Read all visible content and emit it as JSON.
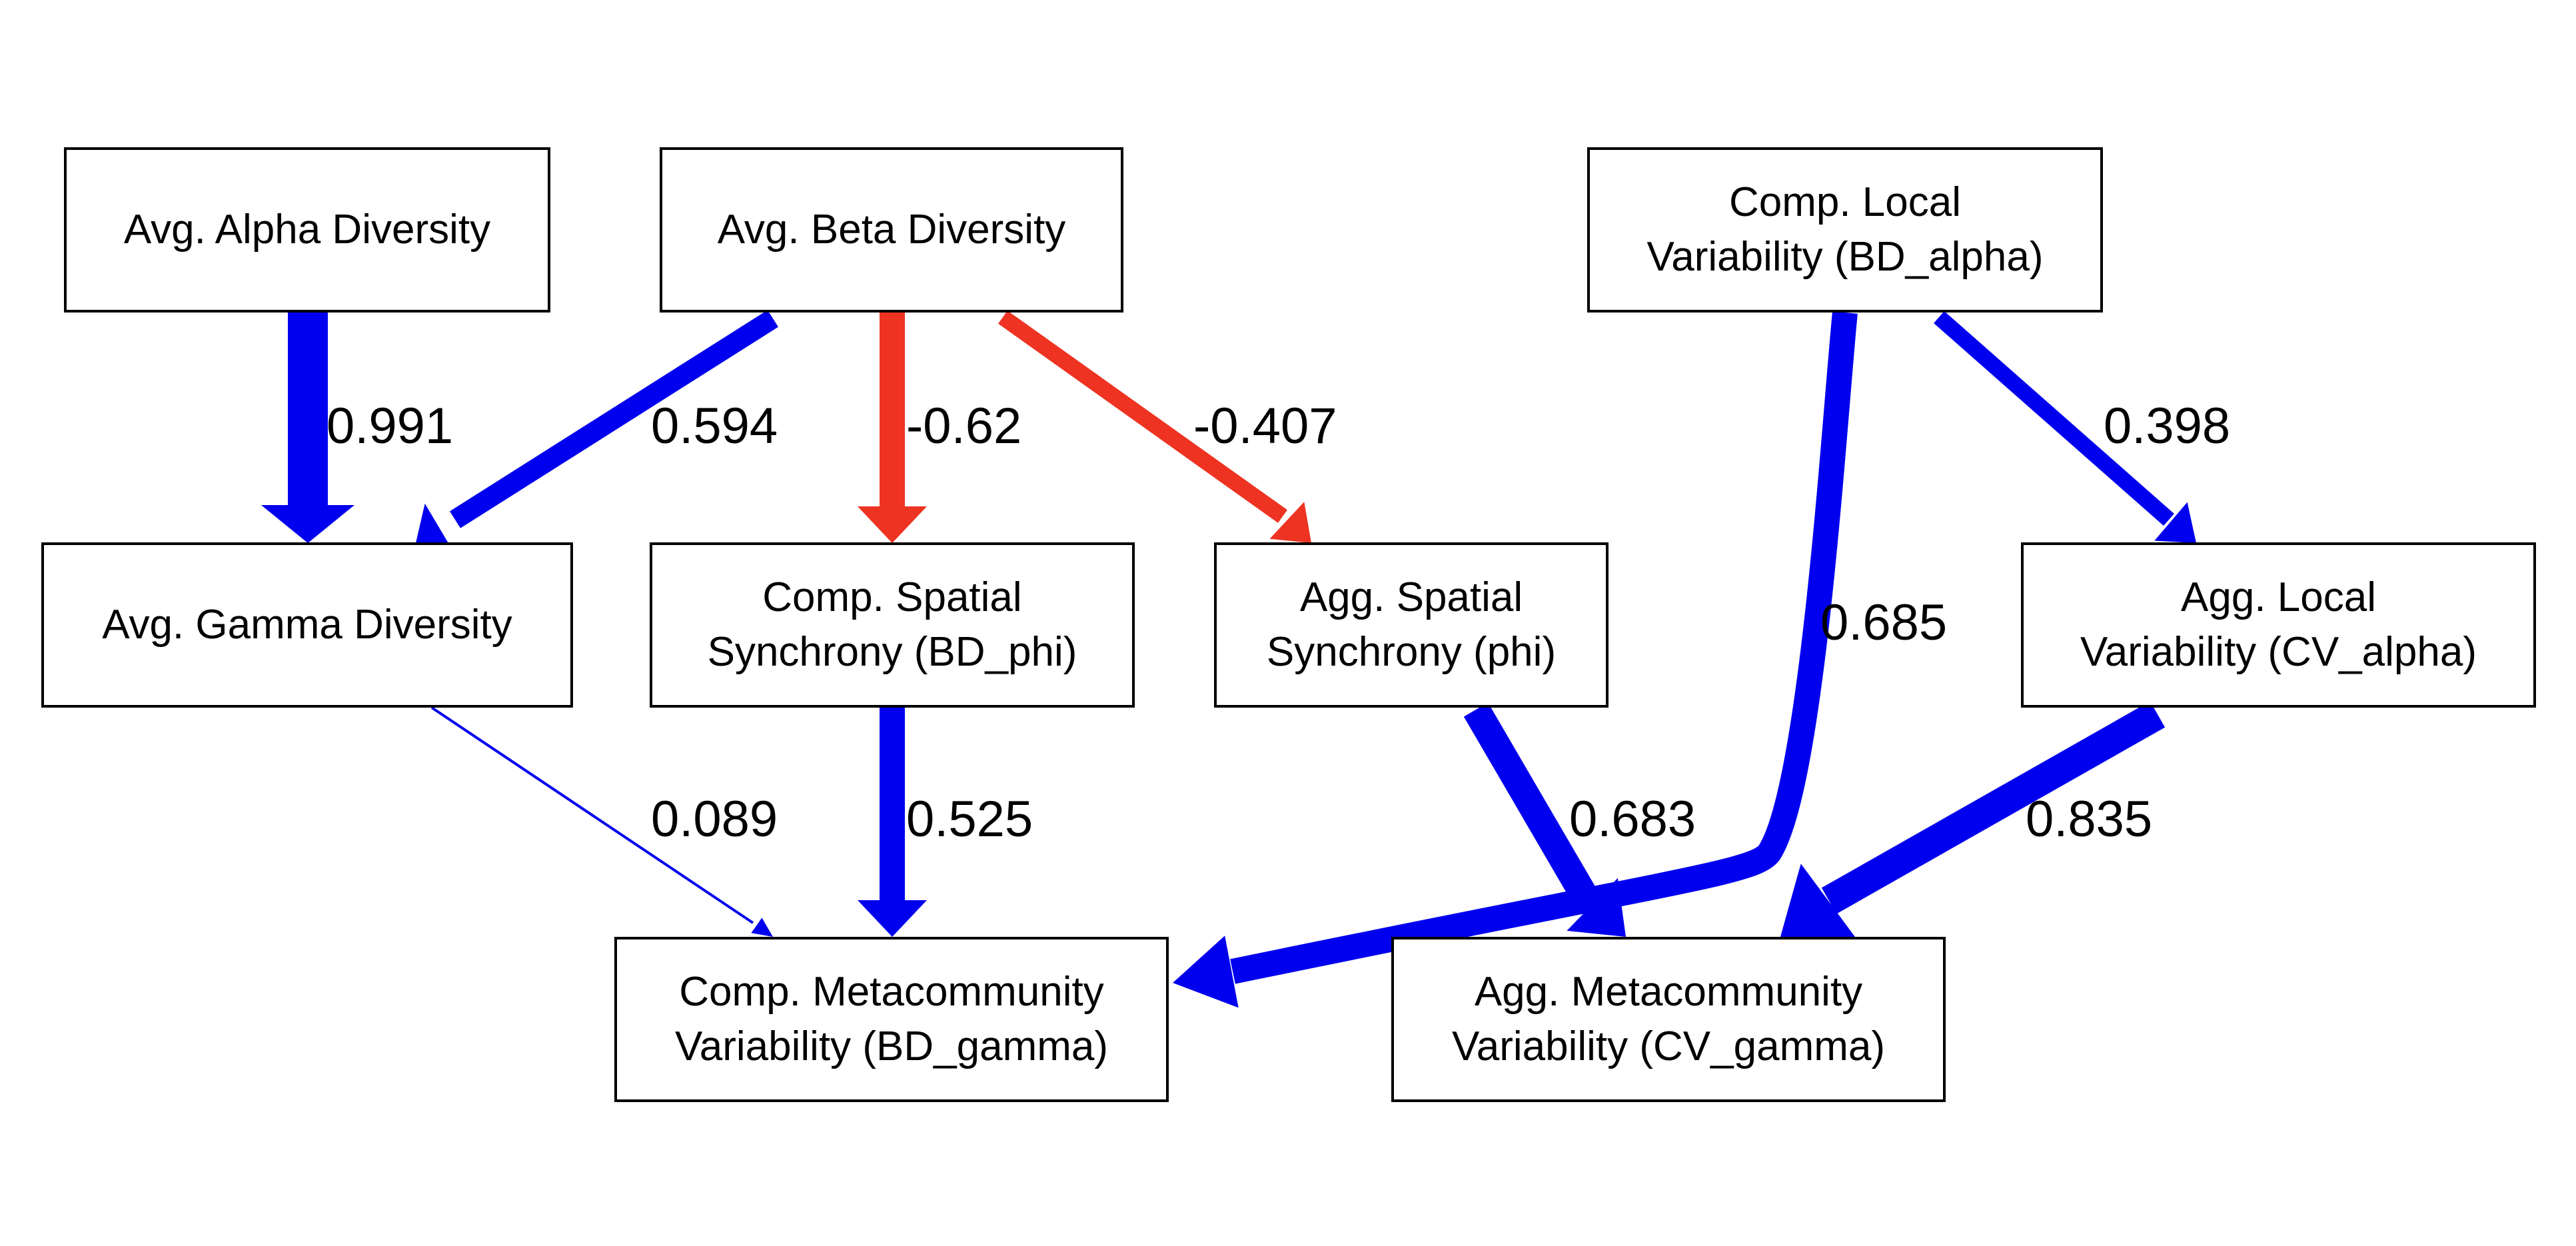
{
  "colors": {
    "positive": "#0000ee",
    "negative": "#ee3322"
  },
  "nodes": {
    "alpha": {
      "label": "Avg. Alpha Diversity"
    },
    "beta": {
      "label": "Avg. Beta Diversity"
    },
    "bd_alpha": {
      "label": "Comp. Local\nVariability (BD_alpha)"
    },
    "gamma": {
      "label": "Avg. Gamma Diversity"
    },
    "bd_phi": {
      "label": "Comp. Spatial\nSynchrony (BD_phi)"
    },
    "phi": {
      "label": "Agg. Spatial\nSynchrony (phi)"
    },
    "cv_alpha": {
      "label": "Agg. Local\nVariability (CV_alpha)"
    },
    "bd_gamma": {
      "label": "Comp. Metacommunity\nVariability (BD_gamma)"
    },
    "cv_gamma": {
      "label": "Agg. Metacommunity\nVariability (CV_gamma)"
    }
  },
  "edges": [
    {
      "id": "alpha-gamma",
      "from": "Avg. Alpha Diversity",
      "to": "Avg. Gamma Diversity",
      "coefficient": 0.991,
      "label": "0.991",
      "sign": "positive"
    },
    {
      "id": "beta-gamma",
      "from": "Avg. Beta Diversity",
      "to": "Avg. Gamma Diversity",
      "coefficient": 0.594,
      "label": "0.594",
      "sign": "positive"
    },
    {
      "id": "beta-bdphi",
      "from": "Avg. Beta Diversity",
      "to": "Comp. Spatial Synchrony (BD_phi)",
      "coefficient": -0.62,
      "label": "-0.62",
      "sign": "negative"
    },
    {
      "id": "beta-phi",
      "from": "Avg. Beta Diversity",
      "to": "Agg. Spatial Synchrony (phi)",
      "coefficient": -0.407,
      "label": "-0.407",
      "sign": "negative"
    },
    {
      "id": "bdalpha-cvalpha",
      "from": "Comp. Local Variability (BD_alpha)",
      "to": "Agg. Local Variability (CV_alpha)",
      "coefficient": 0.398,
      "label": "0.398",
      "sign": "positive"
    },
    {
      "id": "bdalpha-bdgamma",
      "from": "Comp. Local Variability (BD_alpha)",
      "to": "Comp. Metacommunity Variability (BD_gamma)",
      "coefficient": 0.685,
      "label": "0.685",
      "sign": "positive"
    },
    {
      "id": "gamma-bdgamma",
      "from": "Avg. Gamma Diversity",
      "to": "Comp. Metacommunity Variability (BD_gamma)",
      "coefficient": 0.089,
      "label": "0.089",
      "sign": "positive"
    },
    {
      "id": "bdphi-bdgamma",
      "from": "Comp. Spatial Synchrony (BD_phi)",
      "to": "Comp. Metacommunity Variability (BD_gamma)",
      "coefficient": 0.525,
      "label": "0.525",
      "sign": "positive"
    },
    {
      "id": "phi-cvgamma",
      "from": "Agg. Spatial Synchrony (phi)",
      "to": "Agg. Metacommunity Variability (CV_gamma)",
      "coefficient": 0.683,
      "label": "0.683",
      "sign": "positive"
    },
    {
      "id": "cvalpha-cvgamma",
      "from": "Agg. Local Variability (CV_alpha)",
      "to": "Agg. Metacommunity Variability (CV_gamma)",
      "coefficient": 0.835,
      "label": "0.835",
      "sign": "positive"
    }
  ]
}
